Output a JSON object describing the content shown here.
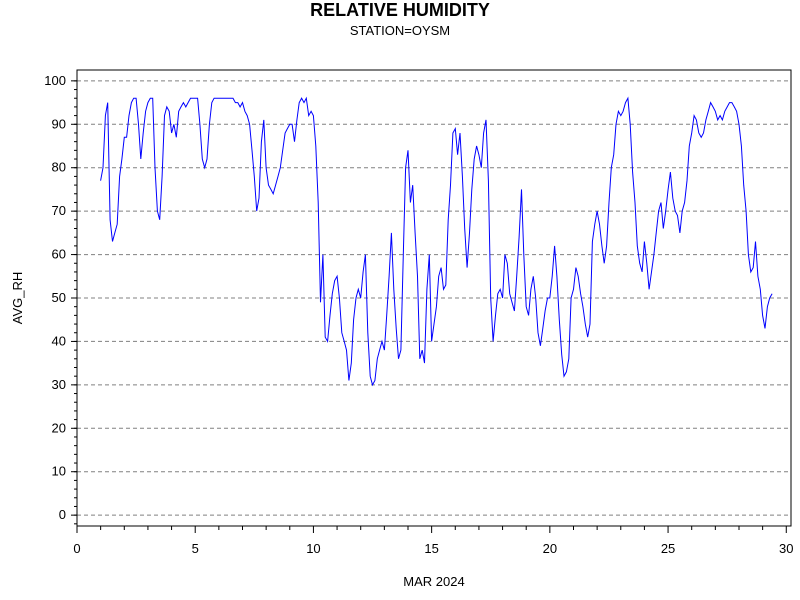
{
  "chart_data": {
    "type": "line",
    "title": "RELATIVE HUMIDITY",
    "subtitle": "STATION=OYSM",
    "xlabel": "MAR 2024",
    "ylabel": "AVG_RH",
    "xlim": [
      0,
      30.2
    ],
    "ylim": [
      -2.5,
      102.5
    ],
    "x_ticks": [
      0,
      5,
      10,
      15,
      20,
      25,
      30
    ],
    "y_ticks": [
      0,
      10,
      20,
      30,
      40,
      50,
      60,
      70,
      80,
      90,
      100
    ],
    "grid": "horizontal-dashed",
    "series": [
      {
        "color": "#0000ff",
        "points": [
          [
            1.0,
            77
          ],
          [
            1.1,
            80
          ],
          [
            1.2,
            92
          ],
          [
            1.3,
            95
          ],
          [
            1.4,
            68
          ],
          [
            1.5,
            63
          ],
          [
            1.6,
            65
          ],
          [
            1.7,
            67
          ],
          [
            1.8,
            78
          ],
          [
            1.9,
            82
          ],
          [
            2.0,
            87
          ],
          [
            2.1,
            87
          ],
          [
            2.2,
            92
          ],
          [
            2.3,
            95
          ],
          [
            2.4,
            96
          ],
          [
            2.5,
            96
          ],
          [
            2.6,
            90
          ],
          [
            2.7,
            82
          ],
          [
            2.8,
            88
          ],
          [
            2.9,
            93
          ],
          [
            3.0,
            95
          ],
          [
            3.1,
            96
          ],
          [
            3.2,
            96
          ],
          [
            3.3,
            80
          ],
          [
            3.4,
            70
          ],
          [
            3.5,
            68
          ],
          [
            3.6,
            78
          ],
          [
            3.7,
            92
          ],
          [
            3.8,
            94
          ],
          [
            3.9,
            93
          ],
          [
            4.0,
            88
          ],
          [
            4.1,
            90
          ],
          [
            4.2,
            87
          ],
          [
            4.3,
            93
          ],
          [
            4.4,
            94
          ],
          [
            4.5,
            95
          ],
          [
            4.6,
            94
          ],
          [
            4.7,
            95
          ],
          [
            4.8,
            96
          ],
          [
            4.9,
            96
          ],
          [
            5.0,
            96
          ],
          [
            5.1,
            96
          ],
          [
            5.2,
            90
          ],
          [
            5.3,
            82
          ],
          [
            5.4,
            80
          ],
          [
            5.5,
            82
          ],
          [
            5.6,
            90
          ],
          [
            5.7,
            95
          ],
          [
            5.8,
            96
          ],
          [
            5.9,
            96
          ],
          [
            6.0,
            96
          ],
          [
            6.1,
            96
          ],
          [
            6.2,
            96
          ],
          [
            6.3,
            96
          ],
          [
            6.4,
            96
          ],
          [
            6.5,
            96
          ],
          [
            6.6,
            96
          ],
          [
            6.7,
            95
          ],
          [
            6.8,
            95
          ],
          [
            6.9,
            94
          ],
          [
            7.0,
            95
          ],
          [
            7.1,
            93
          ],
          [
            7.2,
            92
          ],
          [
            7.3,
            90
          ],
          [
            7.4,
            84
          ],
          [
            7.5,
            78
          ],
          [
            7.6,
            70
          ],
          [
            7.7,
            73
          ],
          [
            7.8,
            86
          ],
          [
            7.9,
            91
          ],
          [
            8.0,
            80
          ],
          [
            8.1,
            76
          ],
          [
            8.2,
            75
          ],
          [
            8.3,
            74
          ],
          [
            8.4,
            76
          ],
          [
            8.5,
            78
          ],
          [
            8.6,
            80
          ],
          [
            8.7,
            84
          ],
          [
            8.8,
            88
          ],
          [
            8.9,
            89
          ],
          [
            9.0,
            90
          ],
          [
            9.1,
            90
          ],
          [
            9.2,
            86
          ],
          [
            9.3,
            91
          ],
          [
            9.4,
            95
          ],
          [
            9.5,
            96
          ],
          [
            9.6,
            95
          ],
          [
            9.7,
            96
          ],
          [
            9.8,
            92
          ],
          [
            9.9,
            93
          ],
          [
            10.0,
            92
          ],
          [
            10.1,
            85
          ],
          [
            10.2,
            72
          ],
          [
            10.3,
            49
          ],
          [
            10.4,
            60
          ],
          [
            10.5,
            41
          ],
          [
            10.6,
            40
          ],
          [
            10.7,
            46
          ],
          [
            10.8,
            51
          ],
          [
            10.9,
            54
          ],
          [
            11.0,
            55
          ],
          [
            11.1,
            50
          ],
          [
            11.2,
            42
          ],
          [
            11.3,
            40
          ],
          [
            11.4,
            38
          ],
          [
            11.5,
            31
          ],
          [
            11.6,
            35
          ],
          [
            11.7,
            45
          ],
          [
            11.8,
            50
          ],
          [
            11.9,
            52
          ],
          [
            12.0,
            50
          ],
          [
            12.1,
            56
          ],
          [
            12.2,
            60
          ],
          [
            12.3,
            42
          ],
          [
            12.4,
            32
          ],
          [
            12.5,
            30
          ],
          [
            12.6,
            31
          ],
          [
            12.7,
            36
          ],
          [
            12.8,
            38
          ],
          [
            12.9,
            40
          ],
          [
            13.0,
            38
          ],
          [
            13.1,
            46
          ],
          [
            13.2,
            55
          ],
          [
            13.3,
            65
          ],
          [
            13.4,
            52
          ],
          [
            13.5,
            43
          ],
          [
            13.6,
            36
          ],
          [
            13.7,
            38
          ],
          [
            13.8,
            60
          ],
          [
            13.9,
            80
          ],
          [
            14.0,
            84
          ],
          [
            14.1,
            72
          ],
          [
            14.2,
            76
          ],
          [
            14.3,
            65
          ],
          [
            14.4,
            55
          ],
          [
            14.5,
            36
          ],
          [
            14.6,
            38
          ],
          [
            14.7,
            35
          ],
          [
            14.8,
            52
          ],
          [
            14.9,
            60
          ],
          [
            15.0,
            40
          ],
          [
            15.1,
            44
          ],
          [
            15.2,
            48
          ],
          [
            15.3,
            55
          ],
          [
            15.4,
            57
          ],
          [
            15.5,
            52
          ],
          [
            15.6,
            53
          ],
          [
            15.7,
            68
          ],
          [
            15.8,
            76
          ],
          [
            15.9,
            88
          ],
          [
            16.0,
            89
          ],
          [
            16.1,
            83
          ],
          [
            16.2,
            88
          ],
          [
            16.3,
            78
          ],
          [
            16.4,
            66
          ],
          [
            16.5,
            57
          ],
          [
            16.6,
            65
          ],
          [
            16.7,
            75
          ],
          [
            16.8,
            82
          ],
          [
            16.9,
            85
          ],
          [
            17.0,
            83
          ],
          [
            17.1,
            80
          ],
          [
            17.2,
            88
          ],
          [
            17.3,
            91
          ],
          [
            17.4,
            77
          ],
          [
            17.5,
            50
          ],
          [
            17.6,
            40
          ],
          [
            17.7,
            46
          ],
          [
            17.8,
            51
          ],
          [
            17.9,
            52
          ],
          [
            18.0,
            50
          ],
          [
            18.1,
            60
          ],
          [
            18.2,
            58
          ],
          [
            18.3,
            51
          ],
          [
            18.4,
            49
          ],
          [
            18.5,
            47
          ],
          [
            18.6,
            55
          ],
          [
            18.7,
            64
          ],
          [
            18.8,
            75
          ],
          [
            18.9,
            60
          ],
          [
            19.0,
            48
          ],
          [
            19.1,
            46
          ],
          [
            19.2,
            52
          ],
          [
            19.3,
            55
          ],
          [
            19.4,
            50
          ],
          [
            19.5,
            42
          ],
          [
            19.6,
            39
          ],
          [
            19.7,
            43
          ],
          [
            19.8,
            47
          ],
          [
            19.9,
            50
          ],
          [
            20.0,
            50
          ],
          [
            20.1,
            55
          ],
          [
            20.2,
            62
          ],
          [
            20.3,
            55
          ],
          [
            20.4,
            45
          ],
          [
            20.5,
            37
          ],
          [
            20.6,
            32
          ],
          [
            20.7,
            33
          ],
          [
            20.8,
            36
          ],
          [
            20.9,
            50
          ],
          [
            21.0,
            52
          ],
          [
            21.1,
            57
          ],
          [
            21.2,
            55
          ],
          [
            21.3,
            51
          ],
          [
            21.4,
            48
          ],
          [
            21.5,
            44
          ],
          [
            21.6,
            41
          ],
          [
            21.7,
            44
          ],
          [
            21.8,
            63
          ],
          [
            21.9,
            67
          ],
          [
            22.0,
            70
          ],
          [
            22.1,
            67
          ],
          [
            22.2,
            62
          ],
          [
            22.3,
            58
          ],
          [
            22.4,
            62
          ],
          [
            22.5,
            72
          ],
          [
            22.6,
            80
          ],
          [
            22.7,
            83
          ],
          [
            22.8,
            90
          ],
          [
            22.9,
            93
          ],
          [
            23.0,
            92
          ],
          [
            23.1,
            93
          ],
          [
            23.2,
            95
          ],
          [
            23.3,
            96
          ],
          [
            23.4,
            90
          ],
          [
            23.5,
            79
          ],
          [
            23.6,
            72
          ],
          [
            23.7,
            62
          ],
          [
            23.8,
            58
          ],
          [
            23.9,
            56
          ],
          [
            24.0,
            63
          ],
          [
            24.1,
            58
          ],
          [
            24.2,
            52
          ],
          [
            24.3,
            56
          ],
          [
            24.4,
            60
          ],
          [
            24.5,
            65
          ],
          [
            24.6,
            70
          ],
          [
            24.7,
            72
          ],
          [
            24.8,
            66
          ],
          [
            24.9,
            70
          ],
          [
            25.0,
            75
          ],
          [
            25.1,
            79
          ],
          [
            25.2,
            73
          ],
          [
            25.3,
            70
          ],
          [
            25.4,
            69
          ],
          [
            25.5,
            65
          ],
          [
            25.6,
            70
          ],
          [
            25.7,
            72
          ],
          [
            25.8,
            77
          ],
          [
            25.9,
            85
          ],
          [
            26.0,
            88
          ],
          [
            26.1,
            92
          ],
          [
            26.2,
            91
          ],
          [
            26.3,
            88
          ],
          [
            26.4,
            87
          ],
          [
            26.5,
            88
          ],
          [
            26.6,
            91
          ],
          [
            26.7,
            93
          ],
          [
            26.8,
            95
          ],
          [
            26.9,
            94
          ],
          [
            27.0,
            93
          ],
          [
            27.1,
            91
          ],
          [
            27.2,
            92
          ],
          [
            27.3,
            91
          ],
          [
            27.4,
            93
          ],
          [
            27.5,
            94
          ],
          [
            27.6,
            95
          ],
          [
            27.7,
            95
          ],
          [
            27.8,
            94
          ],
          [
            27.9,
            93
          ],
          [
            28.0,
            90
          ],
          [
            28.1,
            85
          ],
          [
            28.2,
            76
          ],
          [
            28.3,
            70
          ],
          [
            28.4,
            60
          ],
          [
            28.5,
            56
          ],
          [
            28.6,
            57
          ],
          [
            28.7,
            63
          ],
          [
            28.8,
            55
          ],
          [
            28.9,
            52
          ],
          [
            29.0,
            46
          ],
          [
            29.1,
            43
          ],
          [
            29.2,
            48
          ],
          [
            29.3,
            50
          ],
          [
            29.4,
            51
          ]
        ]
      }
    ]
  }
}
